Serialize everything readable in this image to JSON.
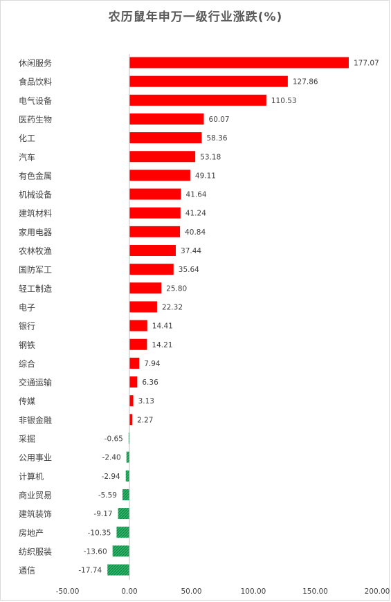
{
  "chart_data": {
    "type": "bar",
    "orientation": "horizontal",
    "title": "农历鼠年申万一级行业涨跌(%)",
    "categories": [
      "休闲服务",
      "食品饮料",
      "电气设备",
      "医药生物",
      "化工",
      "汽车",
      "有色金属",
      "机械设备",
      "建筑材料",
      "家用电器",
      "农林牧渔",
      "国防军工",
      "轻工制造",
      "电子",
      "银行",
      "钢铁",
      "综合",
      "交通运输",
      "传媒",
      "非银金融",
      "采掘",
      "公用事业",
      "计算机",
      "商业贸易",
      "建筑装饰",
      "房地产",
      "纺织服装",
      "通信"
    ],
    "values": [
      177.07,
      127.86,
      110.53,
      60.07,
      58.36,
      53.18,
      49.11,
      41.64,
      41.24,
      40.84,
      37.44,
      35.64,
      25.8,
      22.32,
      14.41,
      14.21,
      7.94,
      6.36,
      3.13,
      2.27,
      -0.65,
      -2.4,
      -2.94,
      -5.59,
      -9.17,
      -10.35,
      -13.6,
      -17.74
    ],
    "value_labels": [
      "177.07",
      "127.86",
      "110.53",
      "60.07",
      "58.36",
      "53.18",
      "49.11",
      "41.64",
      "41.24",
      "40.84",
      "37.44",
      "35.64",
      "25.80",
      "22.32",
      "14.41",
      "14.21",
      "7.94",
      "6.36",
      "3.13",
      "2.27",
      "-0.65",
      "-2.40",
      "-2.94",
      "-5.59",
      "-9.17",
      "-10.35",
      "-13.60",
      "-17.74"
    ],
    "xlim": [
      -50,
      200
    ],
    "x_ticks": [
      -50,
      0,
      50,
      100,
      150,
      200
    ],
    "x_tick_labels": [
      "-50.00",
      "0.00",
      "50.00",
      "100.00",
      "150.00",
      "200.00"
    ],
    "grid": false,
    "colors": {
      "positive": "#ff0000",
      "negative": "#1fa35a",
      "axis": "#bfbfbf",
      "text": "#404040"
    }
  }
}
